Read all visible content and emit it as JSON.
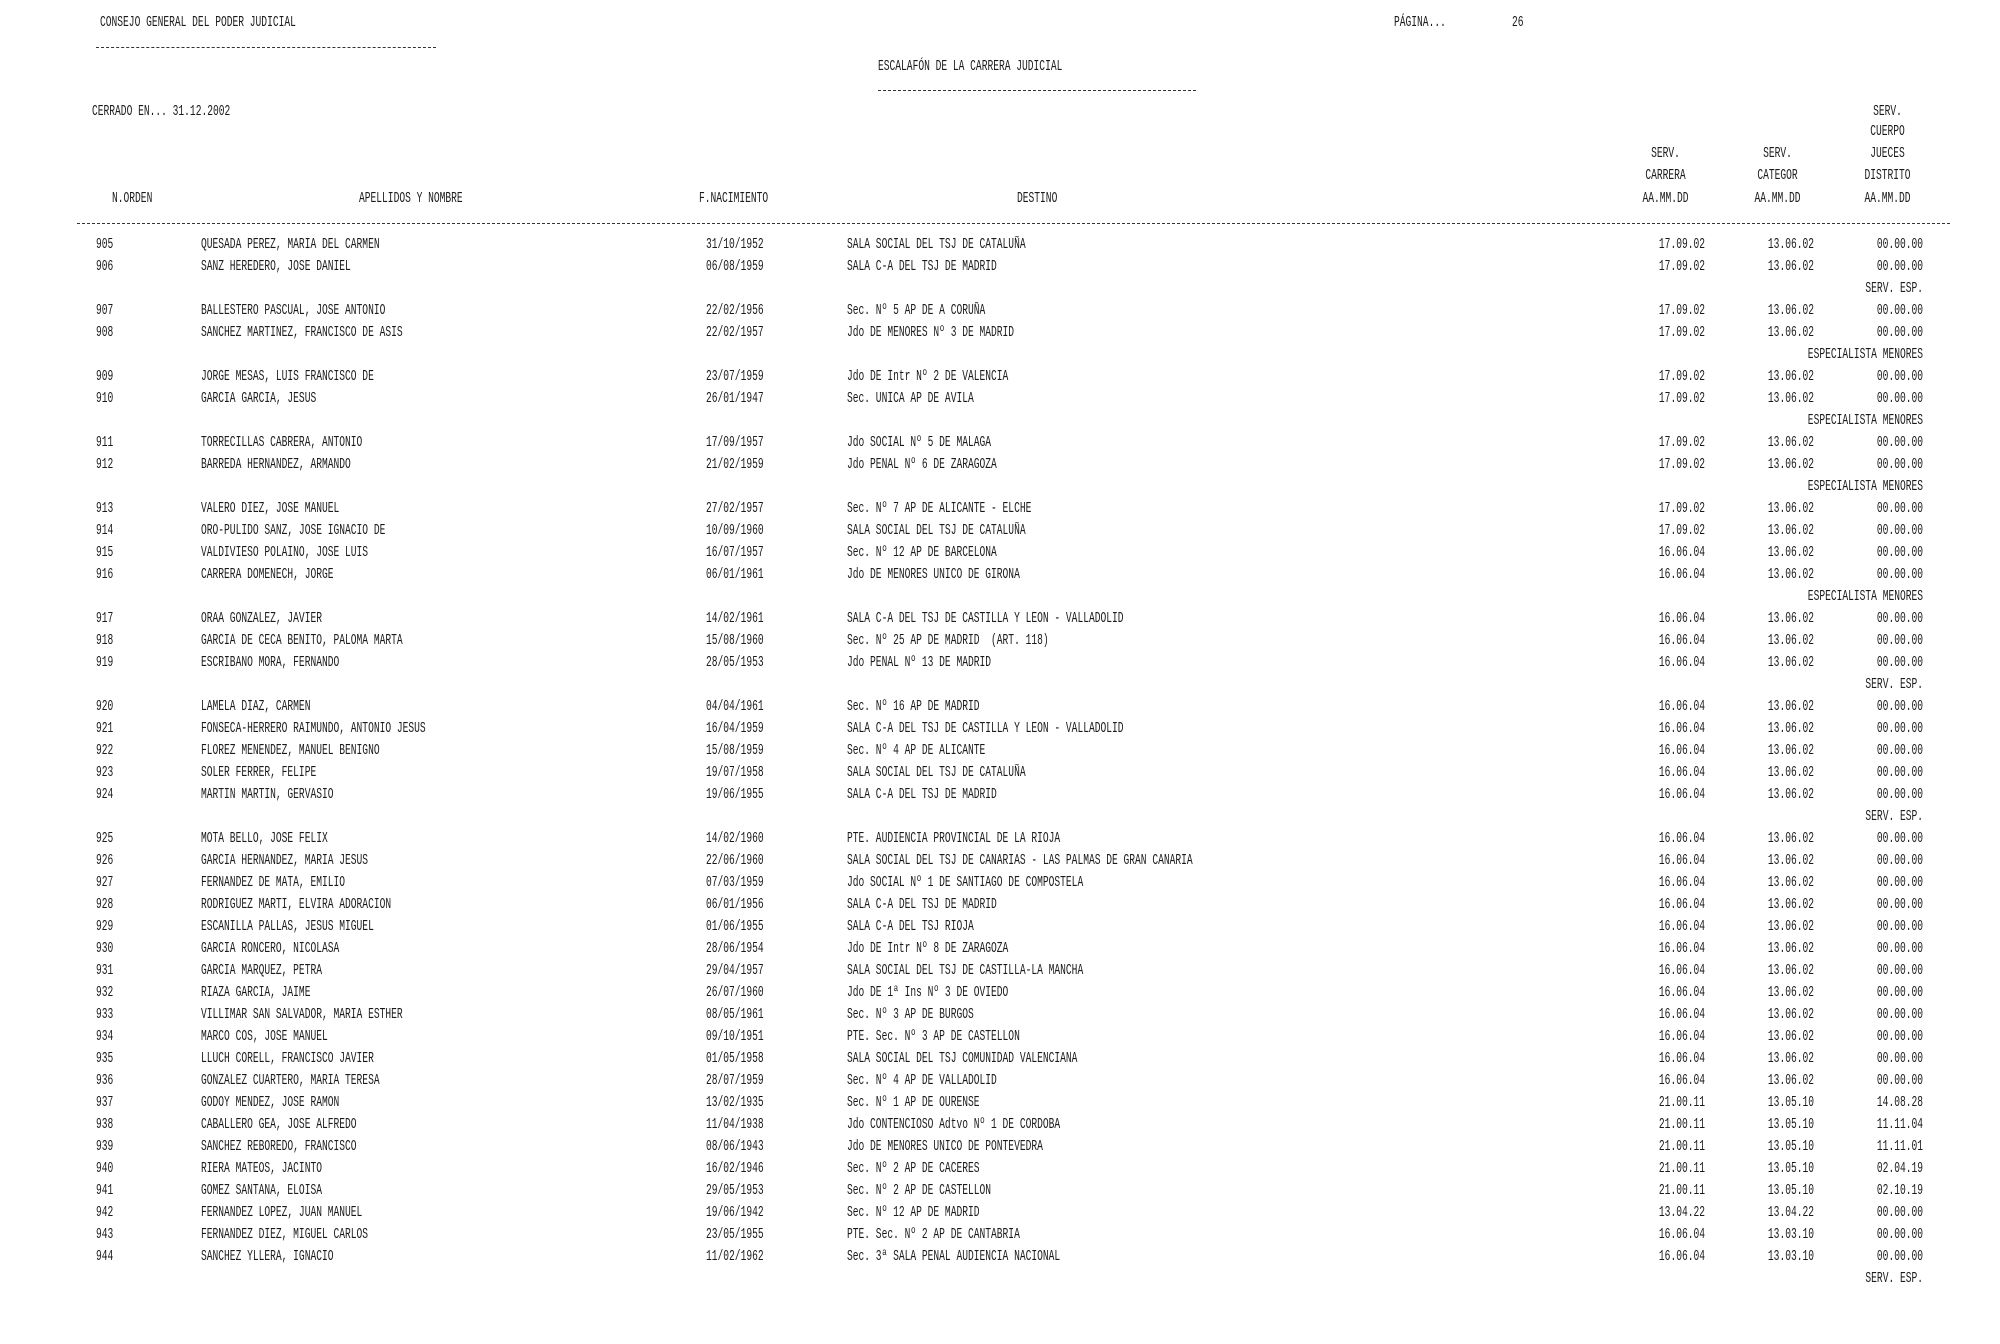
{
  "header": {
    "org": "CONSEJO GENERAL DEL PODER JUDICIAL",
    "page_label": "PÁGINA...",
    "page_number": "26",
    "title": "ESCALAFÓN DE LA CARRERA JUDICIAL",
    "closed_at": "CERRADO EN... 31.12.2002"
  },
  "columns": {
    "orden": "N.ORDEN",
    "nombre": "APELLIDOS Y NOMBRE",
    "nacimiento": "F.NACIMIENTO",
    "destino": "DESTINO",
    "carrera": [
      "SERV.",
      "CARRERA",
      "AA.MM.DD"
    ],
    "categor": [
      "SERV.",
      "CATEGOR",
      "AA.MM.DD"
    ],
    "jueces": [
      "SERV.",
      "CUERPO",
      "JUECES",
      "DISTRITO",
      "AA.MM.DD"
    ]
  },
  "rows": [
    {
      "n": "905",
      "name": "QUESADA PEREZ, MARIA DEL CARMEN",
      "birth": "31/10/1952",
      "dest": "SALA SOCIAL DEL TSJ DE CATALUÑA",
      "carrera": "17.09.02",
      "categor": "13.06.02",
      "jueces": "00.00.00"
    },
    {
      "n": "906",
      "name": "SANZ HEREDERO, JOSE DANIEL",
      "birth": "06/08/1959",
      "dest": "SALA C-A DEL TSJ DE MADRID",
      "carrera": "17.09.02",
      "categor": "13.06.02",
      "jueces": "00.00.00",
      "note": "SERV. ESP."
    },
    {
      "n": "907",
      "name": "BALLESTERO PASCUAL, JOSE ANTONIO",
      "birth": "22/02/1956",
      "dest": "Sec. Nº 5 AP DE A CORUÑA",
      "carrera": "17.09.02",
      "categor": "13.06.02",
      "jueces": "00.00.00"
    },
    {
      "n": "908",
      "name": "SANCHEZ MARTINEZ, FRANCISCO DE ASIS",
      "birth": "22/02/1957",
      "dest": "Jdo DE MENORES Nº 3 DE MADRID",
      "carrera": "17.09.02",
      "categor": "13.06.02",
      "jueces": "00.00.00",
      "note": "ESPECIALISTA MENORES"
    },
    {
      "n": "909",
      "name": "JORGE MESAS, LUIS FRANCISCO DE",
      "birth": "23/07/1959",
      "dest": "Jdo DE Intr Nº 2 DE VALENCIA",
      "carrera": "17.09.02",
      "categor": "13.06.02",
      "jueces": "00.00.00"
    },
    {
      "n": "910",
      "name": "GARCIA GARCIA, JESUS",
      "birth": "26/01/1947",
      "dest": "Sec. UNICA AP DE AVILA",
      "carrera": "17.09.02",
      "categor": "13.06.02",
      "jueces": "00.00.00",
      "note": "ESPECIALISTA MENORES"
    },
    {
      "n": "911",
      "name": "TORRECILLAS CABRERA, ANTONIO",
      "birth": "17/09/1957",
      "dest": "Jdo SOCIAL Nº 5 DE MALAGA",
      "carrera": "17.09.02",
      "categor": "13.06.02",
      "jueces": "00.00.00"
    },
    {
      "n": "912",
      "name": "BARREDA HERNANDEZ, ARMANDO",
      "birth": "21/02/1959",
      "dest": "Jdo PENAL Nº 6 DE ZARAGOZA",
      "carrera": "17.09.02",
      "categor": "13.06.02",
      "jueces": "00.00.00",
      "note": "ESPECIALISTA MENORES"
    },
    {
      "n": "913",
      "name": "VALERO DIEZ, JOSE MANUEL",
      "birth": "27/02/1957",
      "dest": "Sec. Nº 7 AP DE ALICANTE - ELCHE",
      "carrera": "17.09.02",
      "categor": "13.06.02",
      "jueces": "00.00.00"
    },
    {
      "n": "914",
      "name": "ORO-PULIDO SANZ, JOSE IGNACIO DE",
      "birth": "10/09/1960",
      "dest": "SALA SOCIAL DEL TSJ DE CATALUÑA",
      "carrera": "17.09.02",
      "categor": "13.06.02",
      "jueces": "00.00.00"
    },
    {
      "n": "915",
      "name": "VALDIVIESO POLAINO, JOSE LUIS",
      "birth": "16/07/1957",
      "dest": "Sec. Nº 12 AP DE BARCELONA",
      "carrera": "16.06.04",
      "categor": "13.06.02",
      "jueces": "00.00.00"
    },
    {
      "n": "916",
      "name": "CARRERA DOMENECH, JORGE",
      "birth": "06/01/1961",
      "dest": "Jdo DE MENORES UNICO DE GIRONA",
      "carrera": "16.06.04",
      "categor": "13.06.02",
      "jueces": "00.00.00",
      "note": "ESPECIALISTA MENORES"
    },
    {
      "n": "917",
      "name": "ORAA GONZALEZ, JAVIER",
      "birth": "14/02/1961",
      "dest": "SALA C-A DEL TSJ DE CASTILLA Y LEON - VALLADOLID",
      "carrera": "16.06.04",
      "categor": "13.06.02",
      "jueces": "00.00.00"
    },
    {
      "n": "918",
      "name": "GARCIA DE CECA BENITO, PALOMA MARTA",
      "birth": "15/08/1960",
      "dest": "Sec. Nº 25 AP DE MADRID  (ART. 118)",
      "carrera": "16.06.04",
      "categor": "13.06.02",
      "jueces": "00.00.00"
    },
    {
      "n": "919",
      "name": "ESCRIBANO MORA, FERNANDO",
      "birth": "28/05/1953",
      "dest": "Jdo PENAL Nº 13 DE MADRID",
      "carrera": "16.06.04",
      "categor": "13.06.02",
      "jueces": "00.00.00",
      "note": "SERV. ESP."
    },
    {
      "n": "920",
      "name": "LAMELA DIAZ, CARMEN",
      "birth": "04/04/1961",
      "dest": "Sec. Nº 16 AP DE MADRID",
      "carrera": "16.06.04",
      "categor": "13.06.02",
      "jueces": "00.00.00"
    },
    {
      "n": "921",
      "name": "FONSECA-HERRERO RAIMUNDO, ANTONIO JESUS",
      "birth": "16/04/1959",
      "dest": "SALA C-A DEL TSJ DE CASTILLA Y LEON - VALLADOLID",
      "carrera": "16.06.04",
      "categor": "13.06.02",
      "jueces": "00.00.00"
    },
    {
      "n": "922",
      "name": "FLOREZ MENENDEZ, MANUEL BENIGNO",
      "birth": "15/08/1959",
      "dest": "Sec. Nº 4 AP DE ALICANTE",
      "carrera": "16.06.04",
      "categor": "13.06.02",
      "jueces": "00.00.00"
    },
    {
      "n": "923",
      "name": "SOLER FERRER, FELIPE",
      "birth": "19/07/1958",
      "dest": "SALA SOCIAL DEL TSJ DE CATALUÑA",
      "carrera": "16.06.04",
      "categor": "13.06.02",
      "jueces": "00.00.00"
    },
    {
      "n": "924",
      "name": "MARTIN MARTIN, GERVASIO",
      "birth": "19/06/1955",
      "dest": "SALA C-A DEL TSJ DE MADRID",
      "carrera": "16.06.04",
      "categor": "13.06.02",
      "jueces": "00.00.00",
      "note": "SERV. ESP."
    },
    {
      "n": "925",
      "name": "MOTA BELLO, JOSE FELIX",
      "birth": "14/02/1960",
      "dest": "PTE. AUDIENCIA PROVINCIAL DE LA RIOJA",
      "carrera": "16.06.04",
      "categor": "13.06.02",
      "jueces": "00.00.00"
    },
    {
      "n": "926",
      "name": "GARCIA HERNANDEZ, MARIA JESUS",
      "birth": "22/06/1960",
      "dest": "SALA SOCIAL DEL TSJ DE CANARIAS - LAS PALMAS DE GRAN CANARIA",
      "carrera": "16.06.04",
      "categor": "13.06.02",
      "jueces": "00.00.00"
    },
    {
      "n": "927",
      "name": "FERNANDEZ DE MATA, EMILIO",
      "birth": "07/03/1959",
      "dest": "Jdo SOCIAL Nº 1 DE SANTIAGO DE COMPOSTELA",
      "carrera": "16.06.04",
      "categor": "13.06.02",
      "jueces": "00.00.00"
    },
    {
      "n": "928",
      "name": "RODRIGUEZ MARTI, ELVIRA ADORACION",
      "birth": "06/01/1956",
      "dest": "SALA C-A DEL TSJ DE MADRID",
      "carrera": "16.06.04",
      "categor": "13.06.02",
      "jueces": "00.00.00"
    },
    {
      "n": "929",
      "name": "ESCANILLA PALLAS, JESUS MIGUEL",
      "birth": "01/06/1955",
      "dest": "SALA C-A DEL TSJ RIOJA",
      "carrera": "16.06.04",
      "categor": "13.06.02",
      "jueces": "00.00.00"
    },
    {
      "n": "930",
      "name": "GARCIA RONCERO, NICOLASA",
      "birth": "28/06/1954",
      "dest": "Jdo DE Intr Nº 8 DE ZARAGOZA",
      "carrera": "16.06.04",
      "categor": "13.06.02",
      "jueces": "00.00.00"
    },
    {
      "n": "931",
      "name": "GARCIA MARQUEZ, PETRA",
      "birth": "29/04/1957",
      "dest": "SALA SOCIAL DEL TSJ DE CASTILLA-LA MANCHA",
      "carrera": "16.06.04",
      "categor": "13.06.02",
      "jueces": "00.00.00"
    },
    {
      "n": "932",
      "name": "RIAZA GARCIA, JAIME",
      "birth": "26/07/1960",
      "dest": "Jdo DE 1ª Ins Nº 3 DE OVIEDO",
      "carrera": "16.06.04",
      "categor": "13.06.02",
      "jueces": "00.00.00"
    },
    {
      "n": "933",
      "name": "VILLIMAR SAN SALVADOR, MARIA ESTHER",
      "birth": "08/05/1961",
      "dest": "Sec. Nº 3 AP DE BURGOS",
      "carrera": "16.06.04",
      "categor": "13.06.02",
      "jueces": "00.00.00"
    },
    {
      "n": "934",
      "name": "MARCO COS, JOSE MANUEL",
      "birth": "09/10/1951",
      "dest": "PTE. Sec. Nº 3 AP DE CASTELLON",
      "carrera": "16.06.04",
      "categor": "13.06.02",
      "jueces": "00.00.00"
    },
    {
      "n": "935",
      "name": "LLUCH CORELL, FRANCISCO JAVIER",
      "birth": "01/05/1958",
      "dest": "SALA SOCIAL DEL TSJ COMUNIDAD VALENCIANA",
      "carrera": "16.06.04",
      "categor": "13.06.02",
      "jueces": "00.00.00"
    },
    {
      "n": "936",
      "name": "GONZALEZ CUARTERO, MARIA TERESA",
      "birth": "28/07/1959",
      "dest": "Sec. Nº 4 AP DE VALLADOLID",
      "carrera": "16.06.04",
      "categor": "13.06.02",
      "jueces": "00.00.00"
    },
    {
      "n": "937",
      "name": "GODOY MENDEZ, JOSE RAMON",
      "birth": "13/02/1935",
      "dest": "Sec. Nº 1 AP DE OURENSE",
      "carrera": "21.00.11",
      "categor": "13.05.10",
      "jueces": "14.08.28"
    },
    {
      "n": "938",
      "name": "CABALLERO GEA, JOSE ALFREDO",
      "birth": "11/04/1938",
      "dest": "Jdo CONTENCIOSO Adtvo Nº 1 DE CORDOBA",
      "carrera": "21.00.11",
      "categor": "13.05.10",
      "jueces": "11.11.04"
    },
    {
      "n": "939",
      "name": "SANCHEZ REBOREDO, FRANCISCO",
      "birth": "08/06/1943",
      "dest": "Jdo DE MENORES UNICO DE PONTEVEDRA",
      "carrera": "21.00.11",
      "categor": "13.05.10",
      "jueces": "11.11.01"
    },
    {
      "n": "940",
      "name": "RIERA MATEOS, JACINTO",
      "birth": "16/02/1946",
      "dest": "Sec. Nº 2 AP DE CACERES",
      "carrera": "21.00.11",
      "categor": "13.05.10",
      "jueces": "02.04.19"
    },
    {
      "n": "941",
      "name": "GOMEZ SANTANA, ELOISA",
      "birth": "29/05/1953",
      "dest": "Sec. Nº 2 AP DE CASTELLON",
      "carrera": "21.00.11",
      "categor": "13.05.10",
      "jueces": "02.10.19"
    },
    {
      "n": "942",
      "name": "FERNANDEZ LOPEZ, JUAN MANUEL",
      "birth": "19/06/1942",
      "dest": "Sec. Nº 12 AP DE MADRID",
      "carrera": "13.04.22",
      "categor": "13.04.22",
      "jueces": "00.00.00"
    },
    {
      "n": "943",
      "name": "FERNANDEZ DIEZ, MIGUEL CARLOS",
      "birth": "23/05/1955",
      "dest": "PTE. Sec. Nº 2 AP DE CANTABRIA",
      "carrera": "16.06.04",
      "categor": "13.03.10",
      "jueces": "00.00.00"
    },
    {
      "n": "944",
      "name": "SANCHEZ YLLERA, IGNACIO",
      "birth": "11/02/1962",
      "dest": "Sec. 3ª SALA PENAL AUDIENCIA NACIONAL",
      "carrera": "16.06.04",
      "categor": "13.03.10",
      "jueces": "00.00.00",
      "note": "SERV. ESP."
    }
  ]
}
